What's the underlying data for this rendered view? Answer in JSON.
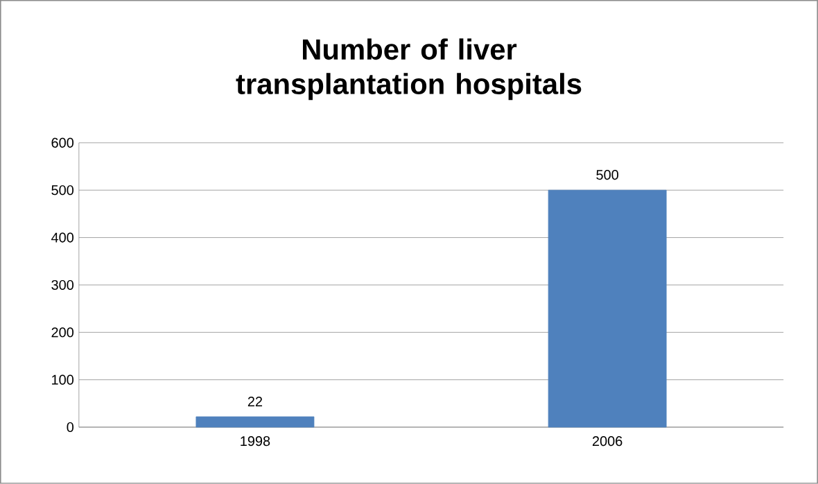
{
  "chart_data": {
    "type": "bar",
    "title": "Number of liver transplantation hospitals",
    "categories": [
      "1998",
      "2006"
    ],
    "values": [
      22,
      500
    ],
    "color": "#4f81bd",
    "ylim": [
      0,
      600
    ],
    "yticks": [
      0,
      100,
      200,
      300,
      400,
      500,
      600
    ],
    "grid": "y",
    "data_labels": true
  }
}
